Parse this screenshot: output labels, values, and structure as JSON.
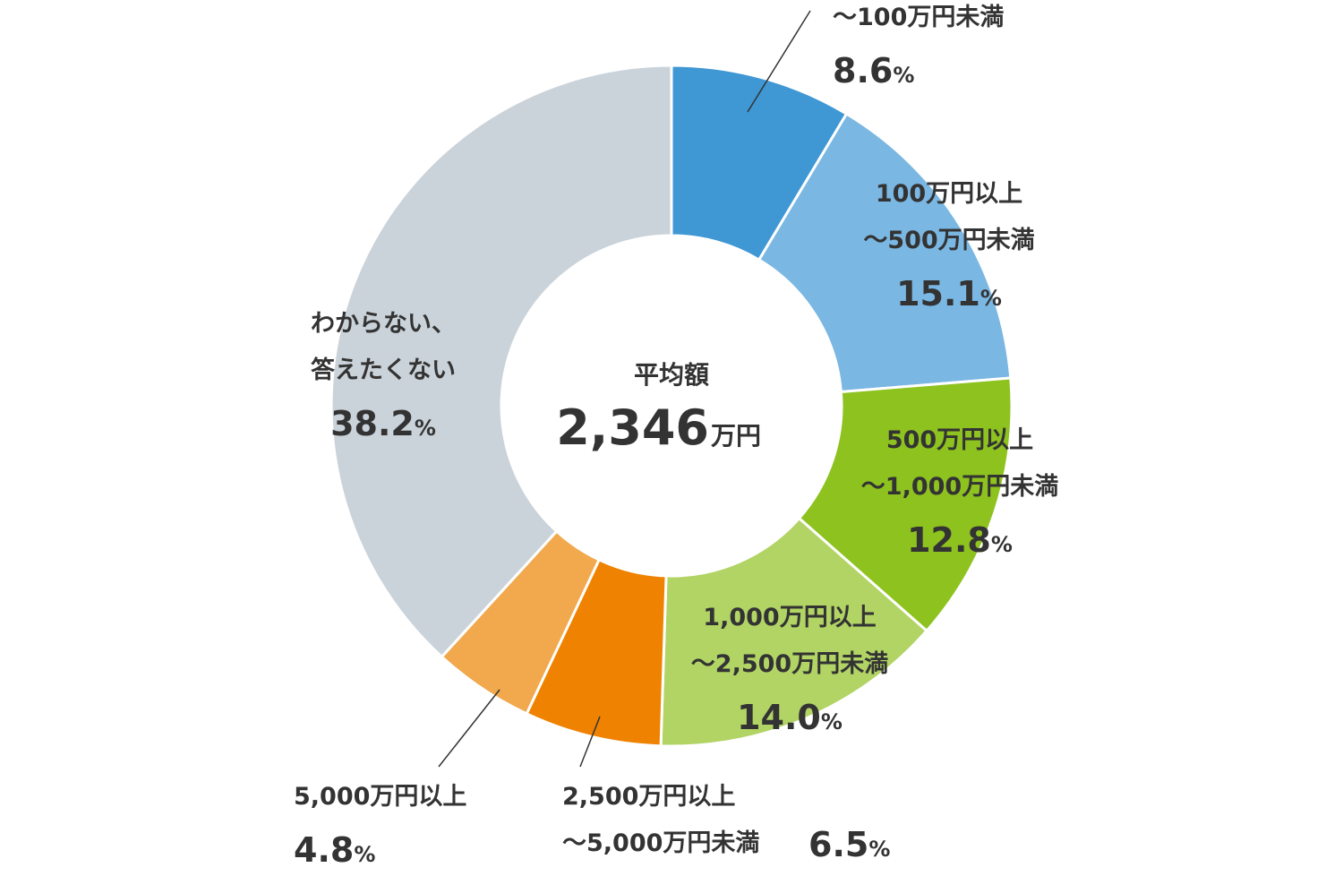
{
  "chart_data": {
    "type": "pie",
    "donut": true,
    "center": {
      "label": "平均額",
      "value": "2,346",
      "unit": "万円"
    },
    "percent_unit": "%",
    "slices": [
      {
        "label_lines": [
          "～100万円未満"
        ],
        "value": 8.6,
        "color": "#3f97d4"
      },
      {
        "label_lines": [
          "100万円以上",
          "～500万円未満"
        ],
        "value": 15.1,
        "color": "#7ab7e2"
      },
      {
        "label_lines": [
          "500万円以上",
          "～1,000万円未満"
        ],
        "value": 12.8,
        "color": "#8dc21f"
      },
      {
        "label_lines": [
          "1,000万円以上",
          "～2,500万円未満"
        ],
        "value": 14.0,
        "color": "#b1d465"
      },
      {
        "label_lines": [
          "2,500万円以上",
          "～5,000万円未満"
        ],
        "value": 6.5,
        "color": "#ef8200"
      },
      {
        "label_lines": [
          "5,000万円以上"
        ],
        "value": 4.8,
        "color": "#f2a84c"
      },
      {
        "label_lines": [
          "わからない、",
          "答えたくない"
        ],
        "value": 38.2,
        "color": "#cbd3da"
      }
    ]
  }
}
